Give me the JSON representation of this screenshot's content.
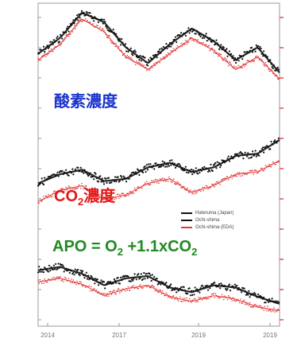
{
  "labels": {
    "o2": "酸素濃度",
    "co2_prefix": "CO",
    "co2_sub": "2",
    "co2_suffix": "濃度",
    "apo_prefix": "APO = O",
    "apo_sub1": "2",
    "apo_mid": " +1.1xCO",
    "apo_sub2": "2"
  },
  "colors": {
    "o2_label": "#1a33cc",
    "co2_label": "#e01a1a",
    "apo_label": "#1f8a1f",
    "series_black": "#111111",
    "series_red": "#e23a3a",
    "axis": "#9a9a9a",
    "right_ticks": "#e05050"
  },
  "axes": {
    "x_ticks": [
      "2014",
      "2017",
      "2019",
      "2019"
    ]
  },
  "legend": {
    "entries": [
      {
        "text": "Hateruma (Japan)",
        "color": "#111111"
      },
      {
        "text": "Ochi-shima",
        "color": "#111111"
      },
      {
        "text": "Ochi-shima (EDA)",
        "color": "#e23a3a"
      }
    ]
  },
  "chart_data": {
    "type": "line",
    "panels": [
      {
        "name": "O2",
        "x": [
          2014.0,
          2014.5,
          2015.0,
          2015.5,
          2016.0,
          2016.5,
          2017.0,
          2017.5,
          2018.0,
          2018.5,
          2019.0,
          2019.5
        ],
        "ylim": [
          -260,
          -100
        ],
        "series": [
          {
            "values": [
              -175,
              -150,
              -110,
              -125,
              -165,
              -190,
              -160,
              -135,
              -155,
              -185,
              -165,
              -205
            ]
          },
          {
            "values": [
              -185,
              -160,
              -120,
              -140,
              -180,
              -200,
              -175,
              -150,
              -170,
              -200,
              -180,
              -215
            ]
          }
        ]
      },
      {
        "name": "CO2",
        "x": [
          2014.0,
          2014.5,
          2015.0,
          2015.5,
          2016.0,
          2016.5,
          2017.0,
          2017.5,
          2018.0,
          2018.5,
          2019.0,
          2019.5
        ],
        "ylim": [
          380,
          420
        ],
        "series": [
          {
            "values": [
              392,
              396,
              398,
              393,
              394,
              399,
              401,
              397,
              399,
              404,
              405,
              411
            ]
          },
          {
            "values": [
              384,
              389,
              391,
              385,
              387,
              392,
              394,
              388,
              391,
              396,
              397,
              402
            ]
          }
        ]
      },
      {
        "name": "APO",
        "x": [
          2014.0,
          2014.5,
          2015.0,
          2015.5,
          2016.0,
          2016.5,
          2017.0,
          2017.5,
          2018.0,
          2018.5,
          2019.0,
          2019.5
        ],
        "ylim": [
          -60,
          0
        ],
        "series": [
          {
            "values": [
              -15,
              -12,
              -18,
              -28,
              -22,
              -20,
              -30,
              -34,
              -28,
              -30,
              -38,
              -44
            ]
          },
          {
            "values": [
              -25,
              -22,
              -27,
              -37,
              -31,
              -28,
              -38,
              -42,
              -37,
              -40,
              -47,
              -50
            ]
          }
        ]
      }
    ]
  }
}
